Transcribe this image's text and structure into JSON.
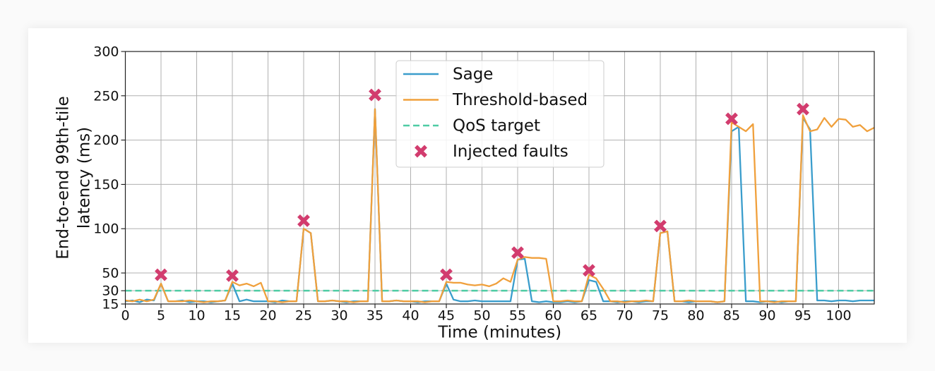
{
  "chart_data": {
    "type": "line",
    "xlabel": "Time (minutes)",
    "ylabel": [
      "End-to-end 99th-tile",
      "latency (ms)"
    ],
    "x": [
      0,
      1,
      2,
      3,
      4,
      5,
      6,
      7,
      8,
      9,
      10,
      11,
      12,
      13,
      14,
      15,
      16,
      17,
      18,
      19,
      20,
      21,
      22,
      23,
      24,
      25,
      26,
      27,
      28,
      29,
      30,
      31,
      32,
      33,
      34,
      35,
      36,
      37,
      38,
      39,
      40,
      41,
      42,
      43,
      44,
      45,
      46,
      47,
      48,
      49,
      50,
      51,
      52,
      53,
      54,
      55,
      56,
      57,
      58,
      59,
      60,
      61,
      62,
      63,
      64,
      65,
      66,
      67,
      68,
      69,
      70,
      71,
      72,
      73,
      74,
      75,
      76,
      77,
      78,
      79,
      80,
      81,
      82,
      83,
      84,
      85,
      86,
      87,
      88,
      89,
      90,
      91,
      92,
      93,
      94,
      95,
      96,
      97,
      98,
      99,
      100,
      101,
      102,
      103,
      104,
      105
    ],
    "series": [
      {
        "name": "Sage",
        "color": "#3a9dcc",
        "values": [
          18,
          19,
          17,
          20,
          19,
          38,
          18,
          18,
          19,
          17,
          18,
          18,
          17,
          18,
          19,
          38,
          18,
          20,
          18,
          18,
          18,
          17,
          19,
          18,
          18,
          100,
          95,
          18,
          18,
          19,
          18,
          17,
          18,
          18,
          18,
          235,
          18,
          18,
          19,
          18,
          18,
          17,
          18,
          18,
          18,
          38,
          20,
          18,
          18,
          19,
          18,
          18,
          18,
          18,
          18,
          65,
          66,
          18,
          17,
          18,
          17,
          17,
          18,
          17,
          18,
          42,
          40,
          18,
          18,
          17,
          18,
          18,
          17,
          18,
          18,
          95,
          97,
          18,
          18,
          17,
          18,
          18,
          18,
          17,
          18,
          210,
          215,
          18,
          18,
          17,
          18,
          18,
          17,
          18,
          18,
          225,
          212,
          19,
          19,
          18,
          19,
          19,
          18,
          19,
          19,
          19
        ]
      },
      {
        "name": "Threshold-based",
        "color": "#f0a03c",
        "values": [
          19,
          18,
          20,
          18,
          20,
          38,
          18,
          18,
          18,
          19,
          18,
          17,
          18,
          18,
          19,
          40,
          36,
          38,
          35,
          39,
          18,
          18,
          17,
          18,
          18,
          100,
          95,
          18,
          18,
          19,
          18,
          18,
          17,
          18,
          18,
          235,
          18,
          18,
          19,
          18,
          18,
          18,
          17,
          18,
          18,
          40,
          39,
          39,
          37,
          36,
          37,
          35,
          38,
          44,
          40,
          65,
          68,
          67,
          67,
          66,
          18,
          18,
          19,
          18,
          18,
          48,
          44,
          32,
          18,
          18,
          17,
          18,
          18,
          19,
          18,
          95,
          97,
          18,
          18,
          19,
          18,
          18,
          18,
          17,
          18,
          220,
          215,
          210,
          218,
          18,
          18,
          17,
          18,
          18,
          18,
          228,
          210,
          212,
          225,
          215,
          224,
          223,
          215,
          217,
          210,
          214
        ]
      }
    ],
    "reference_lines": [
      {
        "name": "QoS target",
        "y": 30,
        "color": "#4fcca4"
      }
    ],
    "markers": {
      "name": "Injected faults",
      "color": "#d23c6e",
      "x": [
        5,
        15,
        25,
        35,
        45,
        55,
        65,
        75,
        85,
        95
      ],
      "y": [
        48,
        47,
        109,
        251,
        48,
        73,
        53,
        103,
        224,
        235
      ]
    },
    "xlim": [
      0,
      105
    ],
    "xticks": [
      0,
      5,
      10,
      15,
      20,
      25,
      30,
      35,
      40,
      45,
      50,
      55,
      60,
      65,
      70,
      75,
      80,
      85,
      90,
      95,
      100
    ],
    "ylim": [
      15,
      300
    ],
    "yticks": [
      15,
      30,
      50,
      100,
      150,
      200,
      250,
      300
    ],
    "grid": true,
    "legend": "upper center"
  }
}
